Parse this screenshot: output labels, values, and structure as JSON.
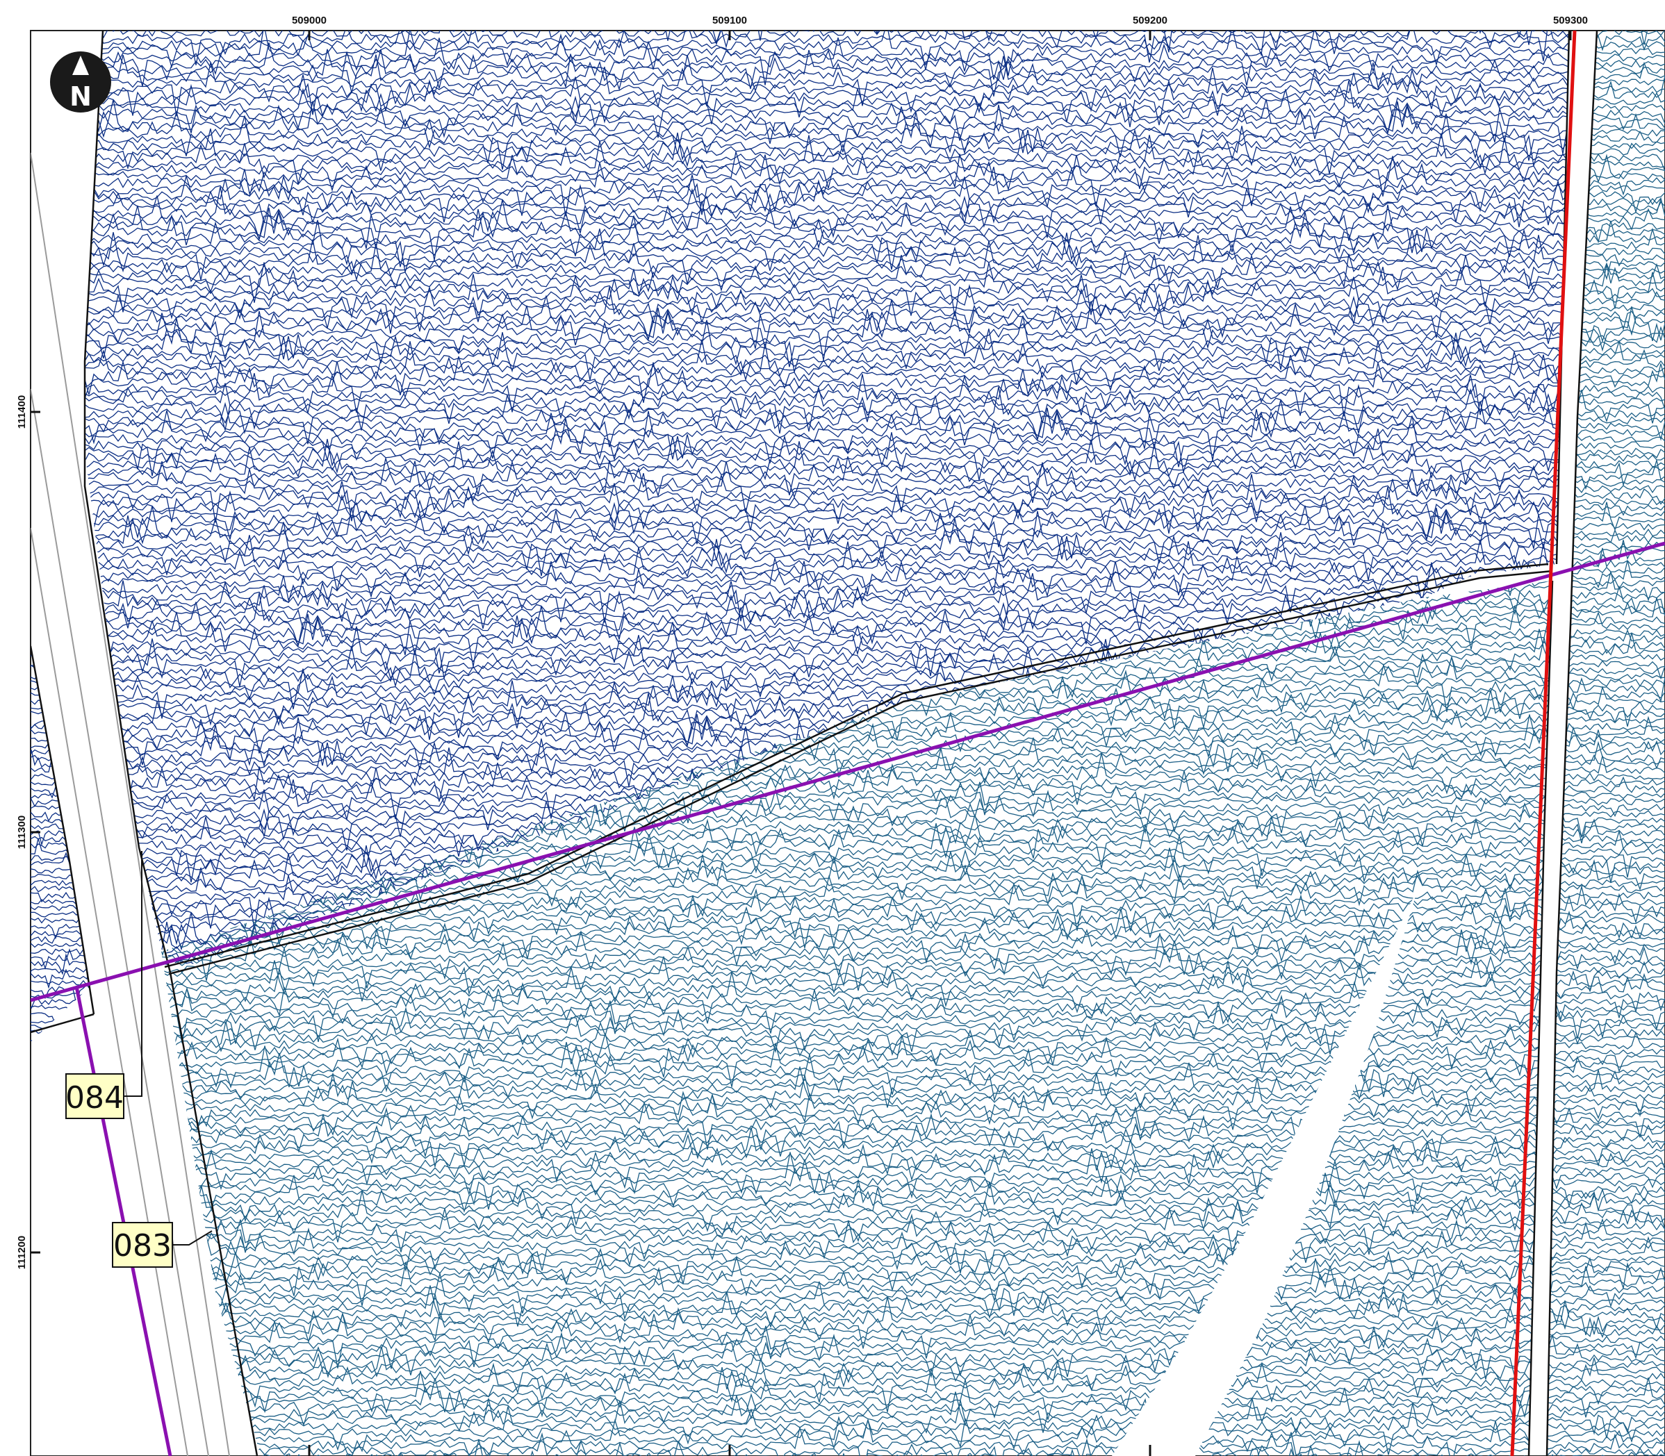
{
  "map": {
    "north_arrow": {
      "letter": "N",
      "icon": "north-arrow-icon"
    },
    "easting_ticks": [
      "509000",
      "509100",
      "509200",
      "509300"
    ],
    "northing_ticks": [
      "111400",
      "111300",
      "111200"
    ],
    "survey_line_labels": [
      "084",
      "083"
    ],
    "colors": {
      "trace_upper": "#0c2f84",
      "trace_lower": "#1c5f86",
      "crossline": "#8a10b0",
      "boundary_red": "#e01010",
      "label_fill": "#ffffc6"
    }
  }
}
